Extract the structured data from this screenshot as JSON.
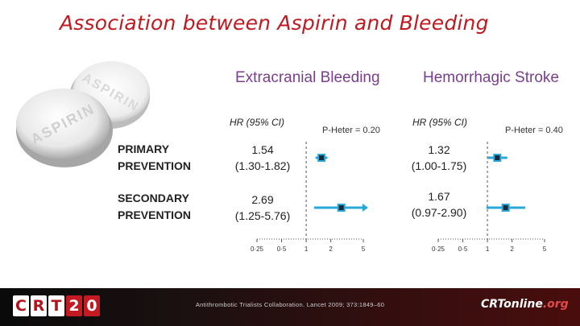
{
  "title": "Association between Aspirin and Bleeding",
  "pill_text": {
    "front": "ASPIRIN",
    "back": "ASPIRIN"
  },
  "row_labels": [
    {
      "line1": "PRIMARY",
      "line2": "PREVENTION"
    },
    {
      "line1": "SECONDARY",
      "line2": "PREVENTION"
    }
  ],
  "panels": [
    {
      "title": "Extracranial Bleeding",
      "hr_header": "HR (95% CI)",
      "p_heter": "P-Heter = 0.20",
      "rows": [
        {
          "hr": "1.54",
          "ci": "(1.30-1.82)",
          "point": 1.54,
          "low": 1.3,
          "high": 1.82
        },
        {
          "hr": "2.69",
          "ci": "(1.25-5.76)",
          "point": 2.69,
          "low": 1.25,
          "high": 5.76
        }
      ],
      "axis_ticks": [
        "0·25",
        "0·5",
        "1",
        "2",
        "5"
      ]
    },
    {
      "title": "Hemorrhagic Stroke",
      "hr_header": "HR (95% CI)",
      "p_heter": "P-Heter = 0.40",
      "rows": [
        {
          "hr": "1.32",
          "ci": "(1.00-1.75)",
          "point": 1.32,
          "low": 1.0,
          "high": 1.75
        },
        {
          "hr": "1.67",
          "ci": "(0.97-2.90)",
          "point": 1.67,
          "low": 0.97,
          "high": 2.9
        }
      ],
      "axis_ticks": [
        "0·25",
        "0·5",
        "1",
        "2",
        "5"
      ]
    }
  ],
  "chart_style": {
    "scale": "log",
    "reference_line": 1,
    "ci_color": "#29a8d8",
    "marker_color": "#1b2a3a"
  },
  "footer": {
    "logo_letters": [
      "C",
      "R",
      "T",
      "2",
      "0"
    ],
    "citation": "Antithrombotic Trialists Collaboration. Lancet 2009; 373:1849–60",
    "site_main": "CRTonline",
    "site_sub": ".org"
  },
  "colors": {
    "title": "#c0191f",
    "panel_title": "#7a3e8f",
    "footer_red": "#c41a22"
  }
}
